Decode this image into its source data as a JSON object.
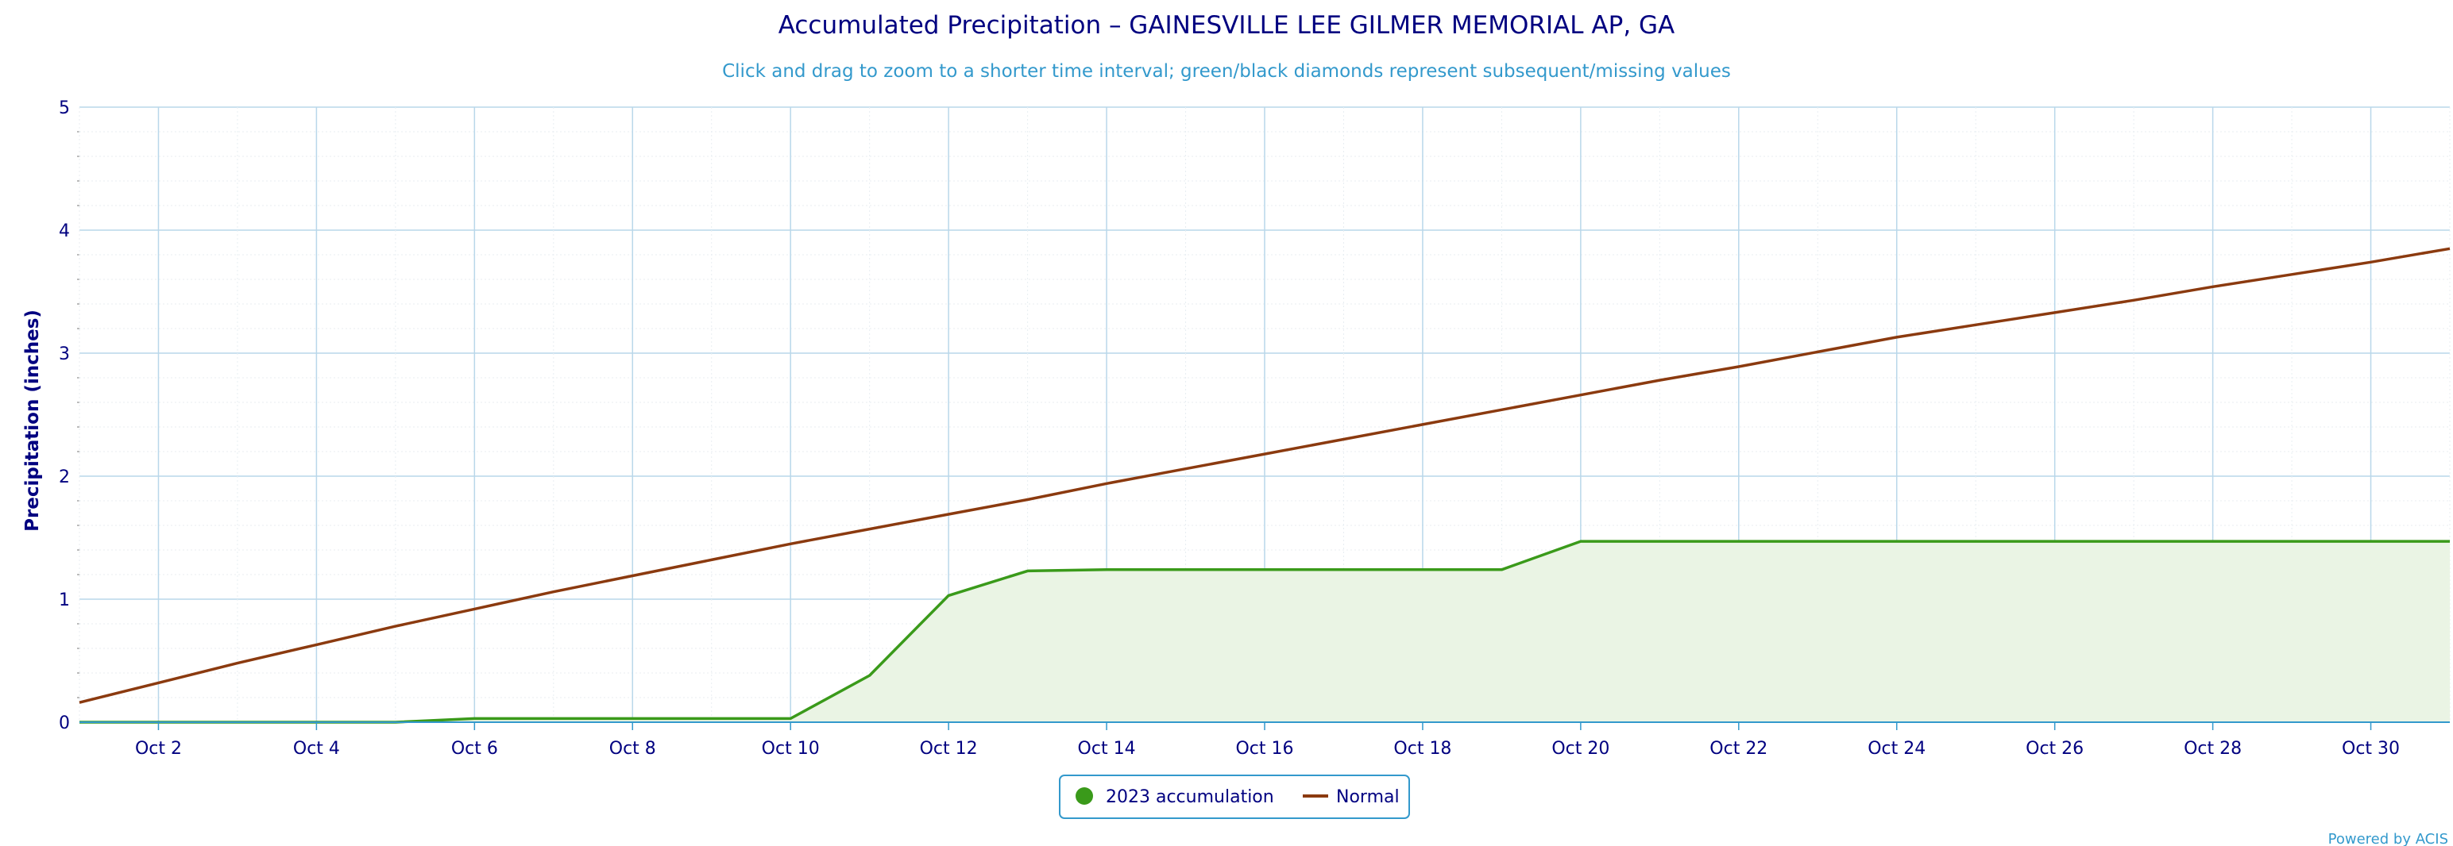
{
  "chart_data": {
    "type": "area",
    "title": "Accumulated Precipitation – GAINESVILLE LEE GILMER MEMORIAL AP, GA",
    "subtitle": "Click and drag to zoom to a shorter time interval; green/black diamonds represent subsequent/missing values",
    "xlabel": "",
    "ylabel": "Precipitation (inches)",
    "ylim": [
      0,
      5
    ],
    "xlim": [
      1,
      31
    ],
    "y_ticks": [
      "0",
      "1",
      "2",
      "3",
      "4",
      "5"
    ],
    "x_ticks": [
      {
        "day": 2,
        "label": "Oct 2"
      },
      {
        "day": 4,
        "label": "Oct 4"
      },
      {
        "day": 6,
        "label": "Oct 6"
      },
      {
        "day": 8,
        "label": "Oct 8"
      },
      {
        "day": 10,
        "label": "Oct 10"
      },
      {
        "day": 12,
        "label": "Oct 12"
      },
      {
        "day": 14,
        "label": "Oct 14"
      },
      {
        "day": 16,
        "label": "Oct 16"
      },
      {
        "day": 18,
        "label": "Oct 18"
      },
      {
        "day": 20,
        "label": "Oct 20"
      },
      {
        "day": 22,
        "label": "Oct 22"
      },
      {
        "day": 24,
        "label": "Oct 24"
      },
      {
        "day": 26,
        "label": "Oct 26"
      },
      {
        "day": 28,
        "label": "Oct 28"
      },
      {
        "day": 30,
        "label": "Oct 30"
      }
    ],
    "grid": true,
    "legend_position": "bottom-center",
    "series": [
      {
        "name": "2023 accumulation",
        "color": "#3a9a1a",
        "fill": "#eaf4e4",
        "style": "area",
        "x": [
          1,
          2,
          3,
          4,
          5,
          6,
          7,
          8,
          9,
          10,
          11,
          12,
          13,
          14,
          15,
          16,
          17,
          18,
          19,
          20,
          21,
          22,
          23,
          24,
          25,
          26,
          27,
          28,
          29,
          30,
          31
        ],
        "y": [
          0.0,
          0.0,
          0.0,
          0.0,
          0.0,
          0.03,
          0.03,
          0.03,
          0.03,
          0.03,
          0.38,
          1.03,
          1.23,
          1.24,
          1.24,
          1.24,
          1.24,
          1.24,
          1.24,
          1.47,
          1.47,
          1.47,
          1.47,
          1.47,
          1.47,
          1.47,
          1.47,
          1.47,
          1.47,
          1.47,
          1.47
        ]
      },
      {
        "name": "Normal",
        "color": "#8b3a0f",
        "style": "line",
        "x": [
          1,
          2,
          3,
          4,
          5,
          6,
          7,
          8,
          9,
          10,
          11,
          12,
          13,
          14,
          15,
          16,
          17,
          18,
          19,
          20,
          21,
          22,
          23,
          24,
          25,
          26,
          27,
          28,
          29,
          30,
          31
        ],
        "y": [
          0.16,
          0.32,
          0.48,
          0.63,
          0.78,
          0.92,
          1.06,
          1.19,
          1.32,
          1.45,
          1.57,
          1.69,
          1.81,
          1.94,
          2.06,
          2.18,
          2.3,
          2.42,
          2.54,
          2.66,
          2.78,
          2.89,
          3.01,
          3.13,
          3.23,
          3.33,
          3.43,
          3.54,
          3.64,
          3.74,
          3.85
        ]
      }
    ]
  },
  "credit": "Powered by ACIS",
  "colors": {
    "grid_major": "#b9d7ea",
    "grid_minor": "#e8eef2",
    "axis": "#3399cc"
  }
}
